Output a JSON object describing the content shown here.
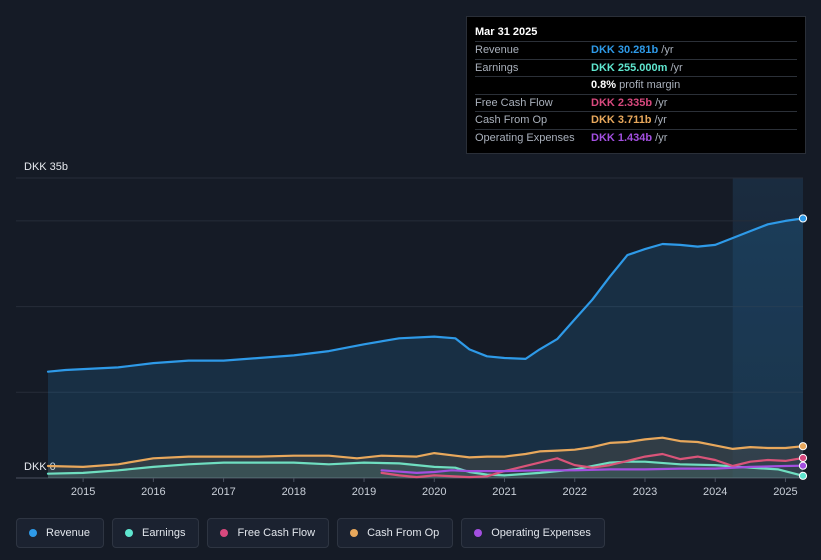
{
  "chart_data": {
    "type": "line",
    "y_unit_label": "DKK 35b",
    "y_zero_label": "DKK 0",
    "ylim": [
      0,
      35
    ],
    "xlim": [
      2014.5,
      2025.25
    ],
    "x_ticks": [
      "2015",
      "2016",
      "2017",
      "2018",
      "2019",
      "2020",
      "2021",
      "2022",
      "2023",
      "2024",
      "2025"
    ],
    "forecast_shade_start": 2024.25,
    "series": [
      {
        "name": "Revenue",
        "color": "#2e9ae8",
        "fill": true,
        "points": [
          [
            2014.5,
            12.4
          ],
          [
            2014.75,
            12.6
          ],
          [
            2015.0,
            12.7
          ],
          [
            2015.5,
            12.9
          ],
          [
            2016.0,
            13.4
          ],
          [
            2016.5,
            13.7
          ],
          [
            2017.0,
            13.7
          ],
          [
            2017.5,
            14.0
          ],
          [
            2018.0,
            14.3
          ],
          [
            2018.5,
            14.8
          ],
          [
            2019.0,
            15.6
          ],
          [
            2019.5,
            16.3
          ],
          [
            2020.0,
            16.5
          ],
          [
            2020.3,
            16.3
          ],
          [
            2020.5,
            15.0
          ],
          [
            2020.75,
            14.2
          ],
          [
            2021.0,
            14.0
          ],
          [
            2021.3,
            13.9
          ],
          [
            2021.5,
            15.0
          ],
          [
            2021.75,
            16.2
          ],
          [
            2022.0,
            18.5
          ],
          [
            2022.25,
            20.8
          ],
          [
            2022.5,
            23.5
          ],
          [
            2022.75,
            26.0
          ],
          [
            2023.0,
            26.7
          ],
          [
            2023.25,
            27.3
          ],
          [
            2023.5,
            27.2
          ],
          [
            2023.75,
            27.0
          ],
          [
            2024.0,
            27.2
          ],
          [
            2024.25,
            28.0
          ],
          [
            2024.5,
            28.8
          ],
          [
            2024.75,
            29.6
          ],
          [
            2025.0,
            30.0
          ],
          [
            2025.25,
            30.281
          ]
        ]
      },
      {
        "name": "Earnings",
        "color": "#5fe6cf",
        "fill": true,
        "points": [
          [
            2014.5,
            0.5
          ],
          [
            2015.0,
            0.6
          ],
          [
            2015.5,
            0.9
          ],
          [
            2016.0,
            1.3
          ],
          [
            2016.5,
            1.6
          ],
          [
            2017.0,
            1.8
          ],
          [
            2017.5,
            1.8
          ],
          [
            2018.0,
            1.8
          ],
          [
            2018.5,
            1.6
          ],
          [
            2019.0,
            1.8
          ],
          [
            2019.5,
            1.7
          ],
          [
            2020.0,
            1.3
          ],
          [
            2020.3,
            1.2
          ],
          [
            2020.5,
            0.7
          ],
          [
            2020.75,
            0.4
          ],
          [
            2021.0,
            0.3
          ],
          [
            2021.5,
            0.6
          ],
          [
            2022.0,
            1.0
          ],
          [
            2022.5,
            1.8
          ],
          [
            2022.75,
            1.9
          ],
          [
            2023.0,
            1.9
          ],
          [
            2023.5,
            1.6
          ],
          [
            2024.0,
            1.5
          ],
          [
            2024.5,
            1.2
          ],
          [
            2024.9,
            1.0
          ],
          [
            2025.25,
            0.255
          ]
        ]
      },
      {
        "name": "Free Cash Flow",
        "color": "#d8497e",
        "fill": false,
        "points": [
          [
            2019.25,
            0.6
          ],
          [
            2019.5,
            0.3
          ],
          [
            2019.75,
            0.1
          ],
          [
            2020.0,
            0.3
          ],
          [
            2020.5,
            0.1
          ],
          [
            2020.75,
            0.2
          ],
          [
            2021.0,
            0.8
          ],
          [
            2021.5,
            1.8
          ],
          [
            2021.75,
            2.3
          ],
          [
            2022.0,
            1.5
          ],
          [
            2022.25,
            1.2
          ],
          [
            2022.5,
            1.5
          ],
          [
            2022.75,
            2.0
          ],
          [
            2023.0,
            2.5
          ],
          [
            2023.25,
            2.8
          ],
          [
            2023.5,
            2.2
          ],
          [
            2023.75,
            2.5
          ],
          [
            2024.0,
            2.1
          ],
          [
            2024.25,
            1.4
          ],
          [
            2024.5,
            1.9
          ],
          [
            2024.75,
            2.1
          ],
          [
            2025.0,
            2.0
          ],
          [
            2025.25,
            2.335
          ]
        ]
      },
      {
        "name": "Cash From Op",
        "color": "#e8a85c",
        "fill": true,
        "points": [
          [
            2014.5,
            1.4
          ],
          [
            2015.0,
            1.3
          ],
          [
            2015.5,
            1.6
          ],
          [
            2016.0,
            2.3
          ],
          [
            2016.5,
            2.5
          ],
          [
            2017.0,
            2.5
          ],
          [
            2017.5,
            2.5
          ],
          [
            2018.0,
            2.6
          ],
          [
            2018.5,
            2.6
          ],
          [
            2018.9,
            2.3
          ],
          [
            2019.25,
            2.6
          ],
          [
            2019.75,
            2.5
          ],
          [
            2020.0,
            2.9
          ],
          [
            2020.3,
            2.6
          ],
          [
            2020.5,
            2.4
          ],
          [
            2020.75,
            2.5
          ],
          [
            2021.0,
            2.5
          ],
          [
            2021.3,
            2.8
          ],
          [
            2021.5,
            3.1
          ],
          [
            2021.75,
            3.2
          ],
          [
            2022.0,
            3.3
          ],
          [
            2022.25,
            3.6
          ],
          [
            2022.5,
            4.1
          ],
          [
            2022.75,
            4.2
          ],
          [
            2023.0,
            4.5
          ],
          [
            2023.25,
            4.7
          ],
          [
            2023.5,
            4.3
          ],
          [
            2023.75,
            4.2
          ],
          [
            2024.0,
            3.8
          ],
          [
            2024.25,
            3.4
          ],
          [
            2024.5,
            3.6
          ],
          [
            2024.75,
            3.5
          ],
          [
            2025.0,
            3.5
          ],
          [
            2025.25,
            3.711
          ]
        ]
      },
      {
        "name": "Operating Expenses",
        "color": "#a34fe0",
        "fill": false,
        "points": [
          [
            2019.25,
            0.9
          ],
          [
            2019.75,
            0.6
          ],
          [
            2020.0,
            0.7
          ],
          [
            2020.25,
            0.9
          ],
          [
            2020.5,
            0.8
          ],
          [
            2021.0,
            0.8
          ],
          [
            2021.5,
            0.9
          ],
          [
            2022.0,
            0.9
          ],
          [
            2022.5,
            1.0
          ],
          [
            2023.0,
            1.0
          ],
          [
            2023.5,
            1.1
          ],
          [
            2024.0,
            1.1
          ],
          [
            2024.5,
            1.3
          ],
          [
            2025.0,
            1.4
          ],
          [
            2025.25,
            1.434
          ]
        ]
      }
    ]
  },
  "tooltip": {
    "date": "Mar 31 2025",
    "rows": [
      {
        "label": "Revenue",
        "value": "DKK 30.281b",
        "unit": "/yr",
        "color": "#2e9ae8"
      },
      {
        "label": "Earnings",
        "value": "DKK 255.000m",
        "unit": "/yr",
        "color": "#5fe6cf"
      },
      {
        "label": "",
        "value": "0.8%",
        "unit": "profit margin",
        "color": "#ffffff"
      },
      {
        "label": "Free Cash Flow",
        "value": "DKK 2.335b",
        "unit": "/yr",
        "color": "#d8497e"
      },
      {
        "label": "Cash From Op",
        "value": "DKK 3.711b",
        "unit": "/yr",
        "color": "#e8a85c"
      },
      {
        "label": "Operating Expenses",
        "value": "DKK 1.434b",
        "unit": "/yr",
        "color": "#a34fe0"
      }
    ]
  },
  "legend": [
    {
      "label": "Revenue",
      "color": "#2e9ae8"
    },
    {
      "label": "Earnings",
      "color": "#5fe6cf"
    },
    {
      "label": "Free Cash Flow",
      "color": "#d8497e"
    },
    {
      "label": "Cash From Op",
      "color": "#e8a85c"
    },
    {
      "label": "Operating Expenses",
      "color": "#a34fe0"
    }
  ]
}
